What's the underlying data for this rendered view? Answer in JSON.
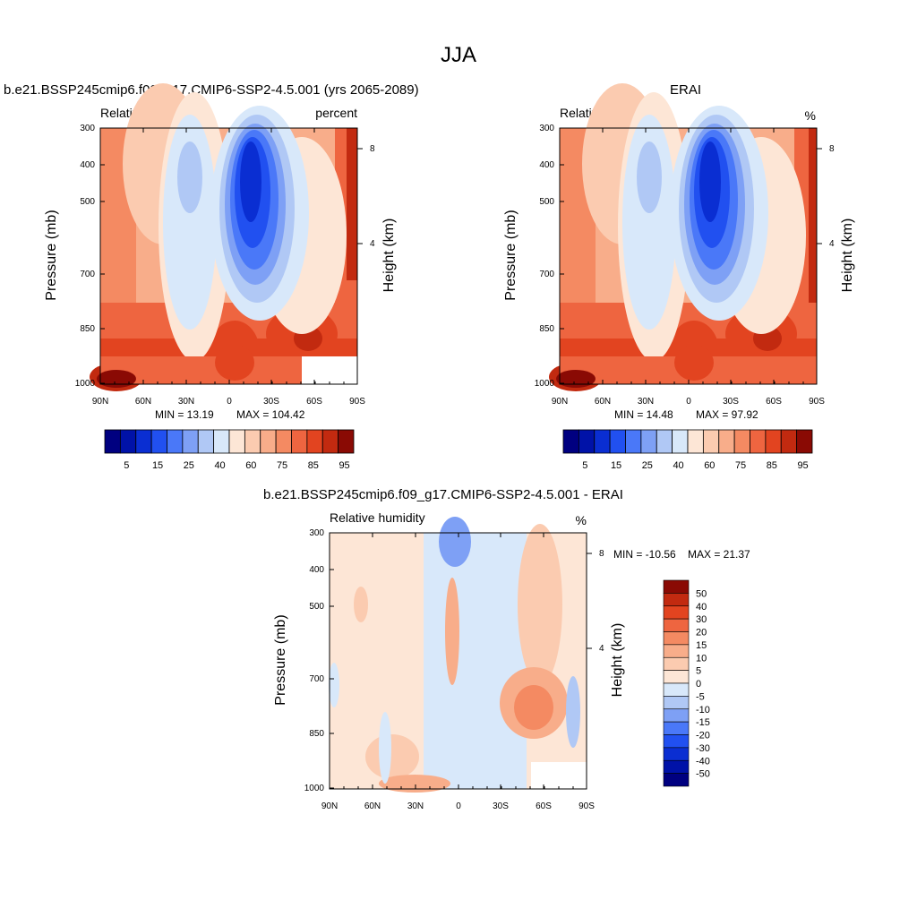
{
  "main_title": "JJA",
  "panels": [
    {
      "title": "b.e21.BSSP245cmip6.f09_g17.CMIP6-SSP2-4.5.001 (yrs 2065-2089)",
      "variable": "Relative humidity",
      "units": "percent",
      "ylabel": "Pressure (mb)",
      "y2label": "Height (km)",
      "min_label": "MIN =  13.19",
      "max_label": "MAX = 104.42"
    },
    {
      "title": "ERAI",
      "variable": "Relative humidity",
      "units": "%",
      "ylabel": "Pressure (mb)",
      "y2label": "Height (km)",
      "min_label": "MIN =  14.48",
      "max_label": "MAX =  97.92"
    },
    {
      "title": "b.e21.BSSP245cmip6.f09_g17.CMIP6-SSP2-4.5.001 - ERAI",
      "variable": "Relative humidity",
      "units": "%",
      "ylabel": "Pressure (mb)",
      "y2label": "Height (km)",
      "min_label": "MIN = -10.56",
      "max_label": "MAX =  21.37"
    }
  ],
  "pressure_ticks": [
    "300",
    "400",
    "500",
    "700",
    "850",
    "1000"
  ],
  "lat_ticks": [
    "90N",
    "60N",
    "30N",
    "0",
    "30S",
    "60S",
    "90S"
  ],
  "height_ticks": [
    "8",
    "4"
  ],
  "rh_colorbar": {
    "labels": [
      "5",
      "15",
      "25",
      "40",
      "60",
      "75",
      "85",
      "95"
    ],
    "colors": [
      "#000080",
      "#0012a8",
      "#0a2ed2",
      "#2150f0",
      "#4a78f8",
      "#7ea0f5",
      "#b0c8f5",
      "#d8e8fa",
      "#fde6d6",
      "#fbcbb0",
      "#f8ad8a",
      "#f48a62",
      "#ee6540",
      "#e24420",
      "#c22a10",
      "#8a0a04"
    ]
  },
  "diff_colorbar": {
    "labels": [
      "50",
      "40",
      "30",
      "20",
      "15",
      "10",
      "5",
      "0",
      "-5",
      "-10",
      "-15",
      "-20",
      "-30",
      "-40",
      "-50"
    ],
    "colors": [
      "#8a0a04",
      "#c22a10",
      "#e24420",
      "#ee6540",
      "#f48a62",
      "#f8ad8a",
      "#fbcbb0",
      "#fde6d6",
      "#d8e8fa",
      "#b0c8f5",
      "#7ea0f5",
      "#4a78f8",
      "#2150f0",
      "#0a2ed2",
      "#0012a8",
      "#000080"
    ]
  },
  "chart_data": [
    {
      "type": "heatmap",
      "title": "b.e21.BSSP245cmip6.f09_g17.CMIP6-SSP2-4.5.001 (yrs 2065-2089)",
      "variable": "Relative humidity",
      "units": "percent",
      "x": [
        "90N",
        "60N",
        "30N",
        "0",
        "30S",
        "60S",
        "90S"
      ],
      "y": [
        300,
        400,
        500,
        700,
        850,
        1000
      ],
      "ylabel": "Pressure (mb)",
      "y2label": "Height (km)",
      "min": 13.19,
      "max": 104.42,
      "colorbar_levels": [
        5,
        15,
        25,
        40,
        60,
        75,
        85,
        95
      ]
    },
    {
      "type": "heatmap",
      "title": "ERAI",
      "variable": "Relative humidity",
      "units": "%",
      "x": [
        "90N",
        "60N",
        "30N",
        "0",
        "30S",
        "60S",
        "90S"
      ],
      "y": [
        300,
        400,
        500,
        700,
        850,
        1000
      ],
      "ylabel": "Pressure (mb)",
      "y2label": "Height (km)",
      "min": 14.48,
      "max": 97.92,
      "colorbar_levels": [
        5,
        15,
        25,
        40,
        60,
        75,
        85,
        95
      ]
    },
    {
      "type": "heatmap",
      "title": "b.e21.BSSP245cmip6.f09_g17.CMIP6-SSP2-4.5.001 - ERAI",
      "variable": "Relative humidity",
      "units": "%",
      "x": [
        "90N",
        "60N",
        "30N",
        "0",
        "30S",
        "60S",
        "90S"
      ],
      "y": [
        300,
        400,
        500,
        700,
        850,
        1000
      ],
      "ylabel": "Pressure (mb)",
      "y2label": "Height (km)",
      "min": -10.56,
      "max": 21.37,
      "colorbar_levels": [
        -50,
        -40,
        -30,
        -20,
        -15,
        -10,
        -5,
        0,
        5,
        10,
        15,
        20,
        30,
        40,
        50
      ]
    }
  ]
}
